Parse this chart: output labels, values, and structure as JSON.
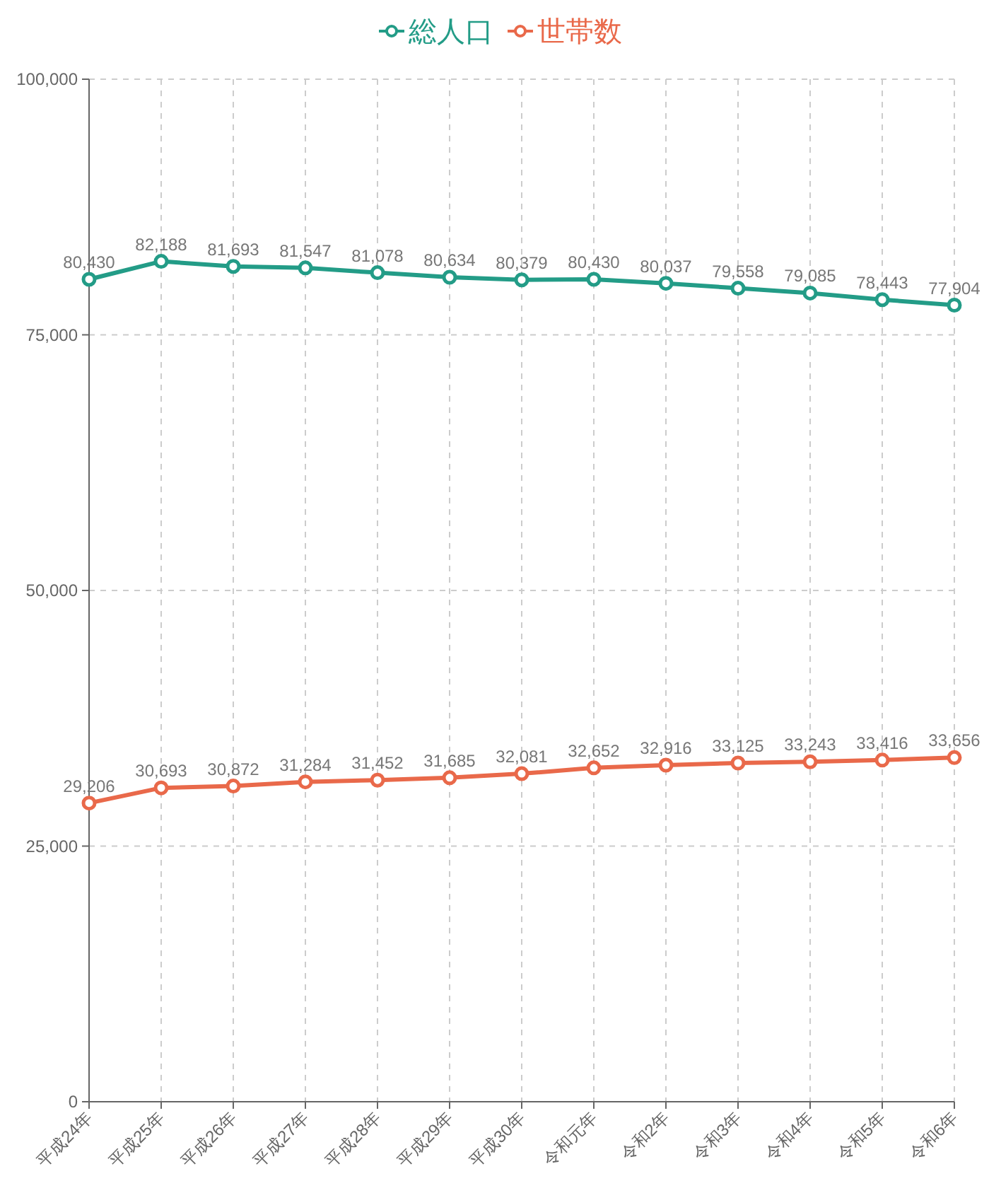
{
  "chart_data": {
    "type": "line",
    "categories": [
      "平成24年",
      "平成25年",
      "平成26年",
      "平成27年",
      "平成28年",
      "平成29年",
      "平成30年",
      "令和元年",
      "令和2年",
      "令和3年",
      "令和4年",
      "令和5年",
      "令和6年"
    ],
    "series": [
      {
        "name": "総人口",
        "color": "#239c87",
        "values": [
          80430,
          82188,
          81693,
          81547,
          81078,
          80634,
          80379,
          80430,
          80037,
          79558,
          79085,
          78443,
          77904
        ],
        "value_labels": [
          "80,430",
          "82,188",
          "81,693",
          "81,547",
          "81,078",
          "80,634",
          "80,379",
          "80,430",
          "80,037",
          "79,558",
          "79,085",
          "78,443",
          "77,904"
        ]
      },
      {
        "name": "世帯数",
        "color": "#e9694a",
        "values": [
          29206,
          30693,
          30872,
          31284,
          31452,
          31685,
          32081,
          32652,
          32916,
          33125,
          33243,
          33416,
          33656
        ],
        "value_labels": [
          "29,206",
          "30,693",
          "30,872",
          "31,284",
          "31,452",
          "31,685",
          "32,081",
          "32,652",
          "32,916",
          "33,125",
          "33,243",
          "33,416",
          "33,656"
        ]
      }
    ],
    "ylim": [
      0,
      100000
    ],
    "yticks": [
      {
        "value": 0,
        "label": "0"
      },
      {
        "value": 25000,
        "label": "25,000"
      },
      {
        "value": 50000,
        "label": "50,000"
      },
      {
        "value": 75000,
        "label": "75,000"
      },
      {
        "value": 100000,
        "label": "100,000"
      }
    ],
    "grid": true,
    "legend": "top",
    "marker": "circle",
    "line_style": "solid"
  }
}
